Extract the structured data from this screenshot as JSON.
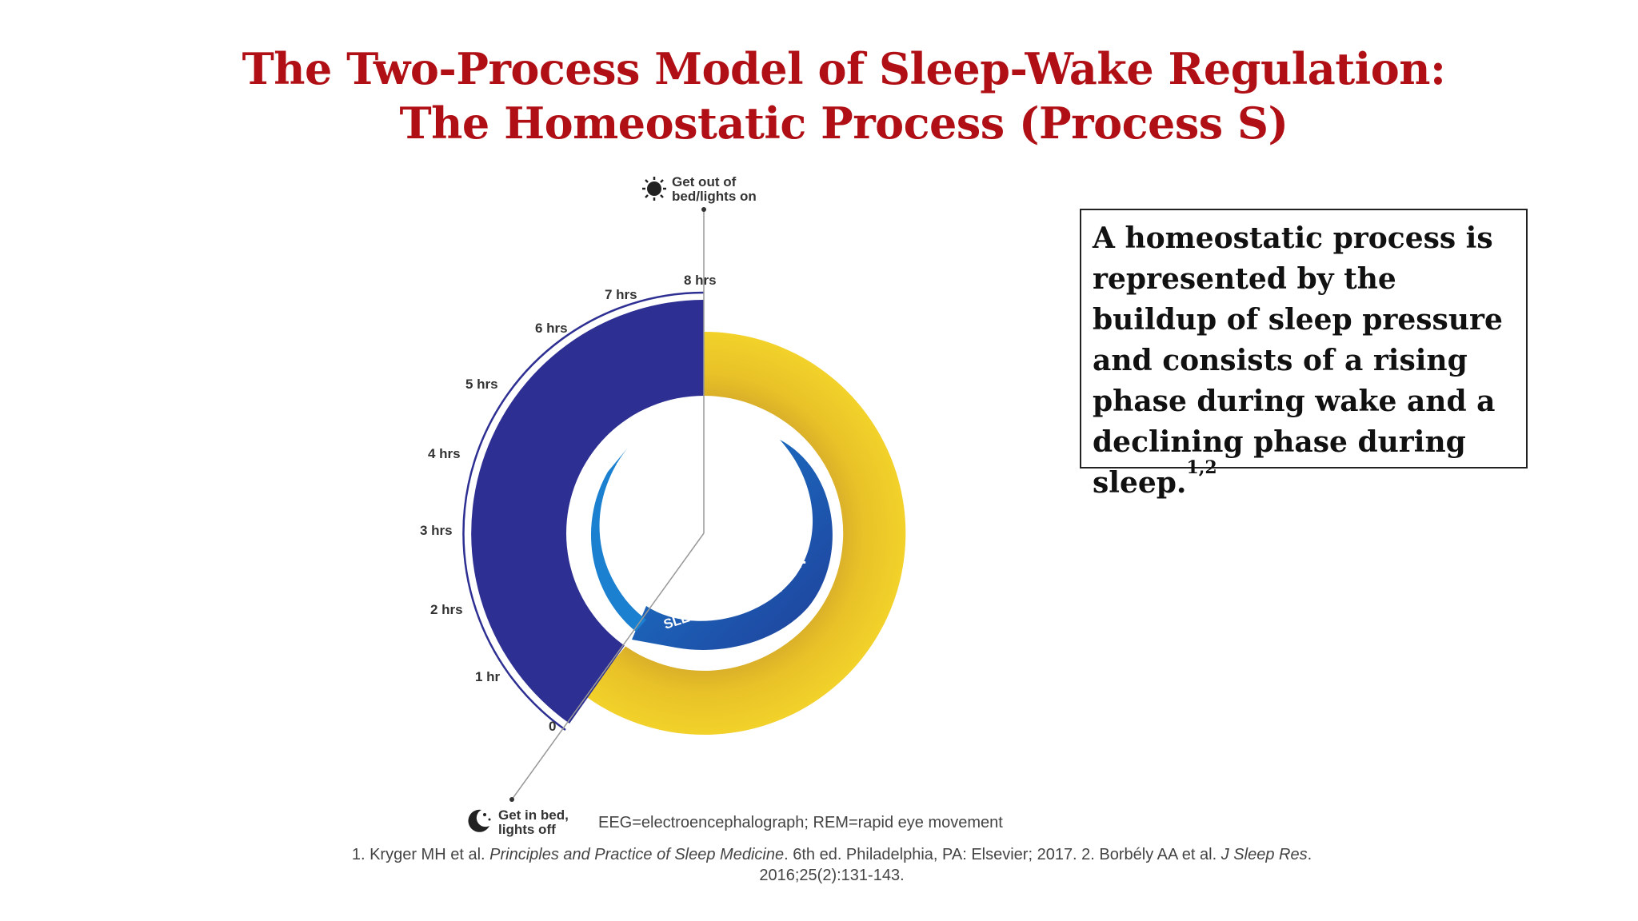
{
  "title": {
    "line1": "The Two-Process Model of Sleep-Wake Regulation:",
    "line2": "The Homeostatic Process (Process S)"
  },
  "diagram": {
    "top_label": {
      "line1": "Get out of",
      "line2": "bed/lights on"
    },
    "bottom_label": {
      "line1": "Get in bed,",
      "line2": "lights off"
    },
    "hour_labels": [
      "0",
      "1 hr",
      "2 hrs",
      "3 hrs",
      "4 hrs",
      "5 hrs",
      "6 hrs",
      "7 hrs",
      "8 hrs"
    ],
    "center_text": "SLEEP PRESSURE",
    "minus_sign": "-",
    "plus_sign": "+",
    "colors": {
      "sleep": "#2e2f92",
      "wake": "#e6be25",
      "pressure": "#1a63b8"
    },
    "icons": {
      "top": "sun-icon",
      "bottom": "moon-stars-icon"
    }
  },
  "info_box": {
    "text": "A homeostatic process is represented by the buildup of sleep pressure and consists of a rising phase during wake and a declining phase during sleep.",
    "superscript": "1,2"
  },
  "abbreviations": "EEG=electroencephalograph; REM=rapid eye movement",
  "references": {
    "part1": "1. Kryger MH et al. ",
    "book": "Principles and Practice of Sleep Medicine",
    "part2": ". 6th ed. Philadelphia, PA: Elsevier; 2017. 2. Borbély AA et al. ",
    "journal": "J Sleep Res",
    "part3": ".",
    "line2": "2016;25(2):131-143."
  }
}
